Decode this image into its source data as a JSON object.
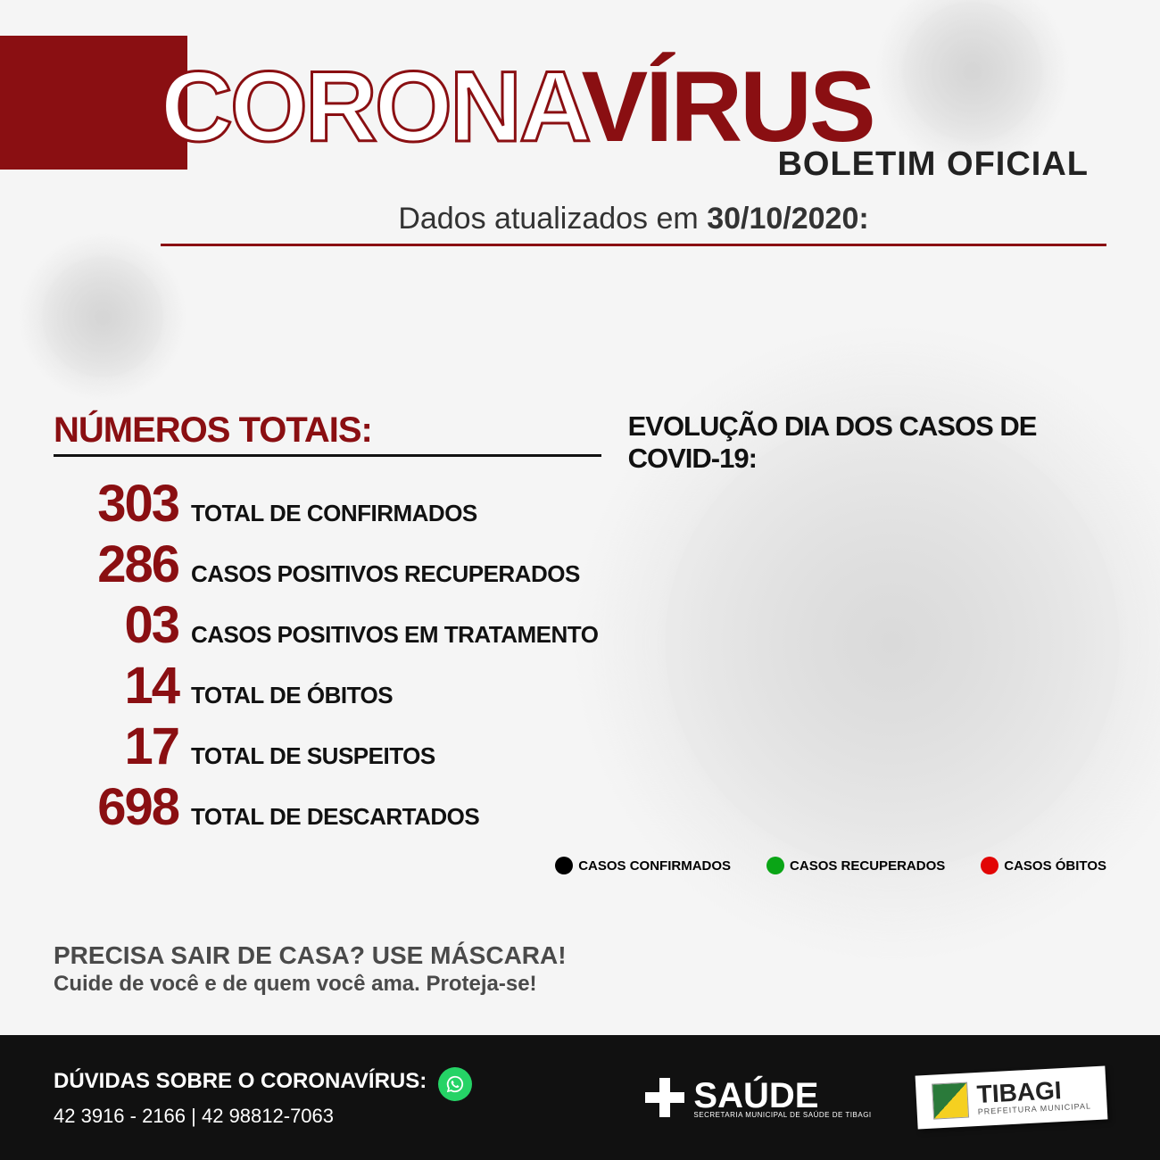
{
  "colors": {
    "darkred": "#8a0f12",
    "black": "#111111",
    "gray_text": "#4a4a4a",
    "bg": "#f5f5f5",
    "whatsapp": "#25d366"
  },
  "header": {
    "title_part1": "CORONA",
    "title_part2": "VÍRUS",
    "subtitle": "BOLETIM OFICIAL",
    "date_prefix": "Dados atualizados em ",
    "date_value": "30/10/2020:"
  },
  "sections": {
    "totals_title": "NÚMEROS TOTAIS:",
    "evolution_title": "EVOLUÇÃO DIA DOS CASOS DE COVID-19:"
  },
  "stats": [
    {
      "value": "303",
      "label": "TOTAL DE CONFIRMADOS"
    },
    {
      "value": "286",
      "label": "CASOS POSITIVOS RECUPERADOS"
    },
    {
      "value": "03",
      "label": "CASOS POSITIVOS EM TRATAMENTO"
    },
    {
      "value": "14",
      "label": "TOTAL DE ÓBITOS"
    },
    {
      "value": "17",
      "label": "TOTAL DE SUSPEITOS"
    },
    {
      "value": "698",
      "label": "TOTAL DE DESCARTADOS"
    }
  ],
  "legend": [
    {
      "color": "#000000",
      "label": "CASOS CONFIRMADOS"
    },
    {
      "color": "#0aa516",
      "label": "CASOS RECUPERADOS"
    },
    {
      "color": "#e20505",
      "label": "CASOS ÓBITOS"
    }
  ],
  "advice": {
    "line1": "PRECISA SAIR DE CASA? USE MÁSCARA!",
    "line2": "Cuide de você e de quem você ama. Proteja-se!"
  },
  "footer": {
    "contact_title": "DÚVIDAS SOBRE O CORONAVÍRUS:",
    "phone1": "42 3916 - 2166",
    "phone_sep": "  |  ",
    "phone2": "42 98812-7063",
    "saude_label": "SAÚDE",
    "saude_sub": "SECRETARIA MUNICIPAL DE SAÚDE DE TIBAGI",
    "city_name": "TIBAGI",
    "city_sub": "PREFEITURA MUNICIPAL"
  }
}
